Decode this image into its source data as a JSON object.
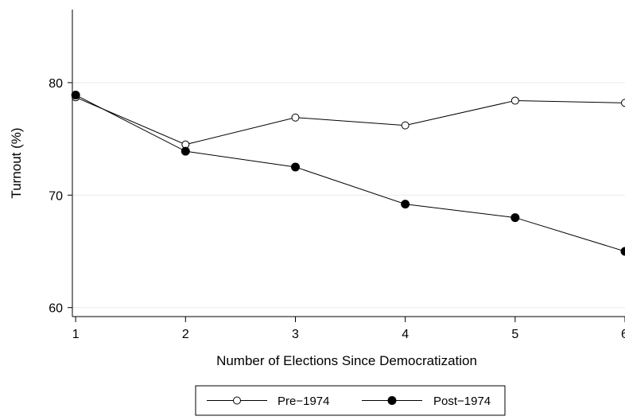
{
  "chart_data": {
    "type": "line",
    "title": "",
    "xlabel": "Number of Elections Since Democratization",
    "ylabel": "Turnout (%)",
    "x": [
      1,
      2,
      3,
      4,
      5,
      6
    ],
    "x_ticks": [
      "1",
      "2",
      "3",
      "4",
      "5",
      "6"
    ],
    "y_ticks": [
      "60",
      "70",
      "80"
    ],
    "xlim": [
      0.97,
      6.0
    ],
    "ylim": [
      59.2,
      86.5
    ],
    "grid": true,
    "legend_position": "bottom",
    "series": [
      {
        "name": "Pre−1974",
        "marker": "hollow-circle",
        "values": [
          78.7,
          74.5,
          76.9,
          76.2,
          78.4,
          78.2
        ]
      },
      {
        "name": "Post−1974",
        "marker": "filled-circle",
        "values": [
          78.9,
          73.9,
          72.5,
          69.2,
          68.0,
          65.0
        ]
      }
    ],
    "colors": {
      "line": "#000000",
      "grid": "#eaeaea",
      "background": "#ffffff"
    }
  }
}
